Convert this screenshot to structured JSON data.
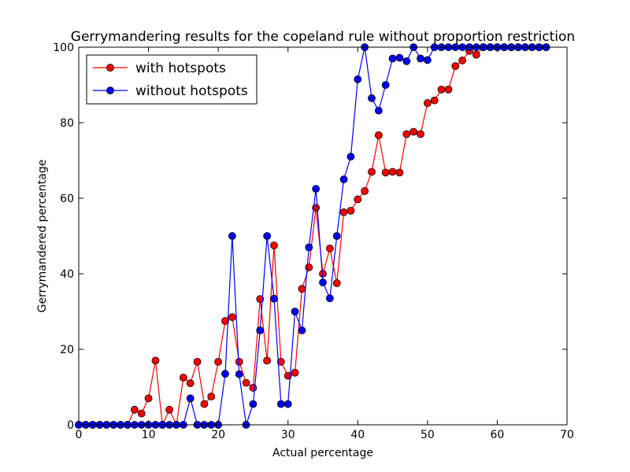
{
  "chart_data": {
    "type": "line",
    "title": "Gerrymandering results for the copeland rule without proportion restriction",
    "xlabel": "Actual percentage",
    "ylabel": "Gerrymandered percentage",
    "xlim": [
      0,
      70
    ],
    "ylim": [
      0,
      100
    ],
    "xticks": [
      0,
      10,
      20,
      30,
      40,
      50,
      60,
      70
    ],
    "yticks": [
      0,
      20,
      40,
      60,
      80,
      100
    ],
    "grid": false,
    "legend_position": "top-left",
    "x": [
      0,
      1,
      2,
      3,
      4,
      5,
      6,
      7,
      8,
      9,
      10,
      11,
      12,
      13,
      14,
      15,
      16,
      17,
      18,
      19,
      20,
      21,
      22,
      23,
      24,
      25,
      26,
      27,
      28,
      29,
      30,
      31,
      32,
      33,
      34,
      35,
      36,
      37,
      38,
      39,
      40,
      41,
      42,
      43,
      44,
      45,
      46,
      47,
      48,
      49,
      50,
      51,
      52,
      53,
      54,
      55,
      56,
      57,
      58,
      59,
      60,
      61,
      62,
      63,
      64,
      65,
      66,
      67
    ],
    "series": [
      {
        "name": "with hotspots",
        "color": "#ff0000",
        "values": [
          0,
          0,
          0,
          0,
          0,
          0,
          0,
          0,
          4,
          3,
          7,
          17,
          0,
          4,
          0,
          12.5,
          11,
          16.7,
          5.5,
          7.5,
          16.7,
          27.5,
          28.5,
          16.7,
          11.1,
          9.8,
          33.3,
          17,
          47.5,
          16.7,
          13,
          13.8,
          36,
          41.7,
          57.5,
          40,
          46.7,
          37.5,
          56.3,
          56.7,
          59.7,
          61.9,
          67,
          76.7,
          66.8,
          67,
          66.8,
          77,
          77.6,
          77,
          85.2,
          85.9,
          88.8,
          88.8,
          95,
          96.5,
          99,
          98,
          100,
          100,
          100,
          100,
          100,
          100,
          100,
          100,
          100,
          100
        ]
      },
      {
        "name": "without hotspots",
        "color": "#0000ff",
        "values": [
          0,
          0,
          0,
          0,
          0,
          0,
          0,
          0,
          0,
          0,
          0,
          0,
          0,
          0,
          0,
          0,
          7,
          0,
          0,
          0,
          0,
          13.5,
          50,
          13.4,
          0,
          5.5,
          25,
          50,
          33.4,
          5.5,
          5.5,
          30,
          25,
          47,
          62.5,
          37.7,
          33.5,
          50,
          65,
          71,
          91.5,
          100,
          86.5,
          83.2,
          90,
          97,
          97.2,
          96.3,
          100,
          97,
          96.6,
          100,
          100,
          100,
          100,
          100,
          100,
          100,
          100,
          100,
          100,
          100,
          100,
          100,
          100,
          100,
          100,
          100
        ]
      }
    ]
  }
}
